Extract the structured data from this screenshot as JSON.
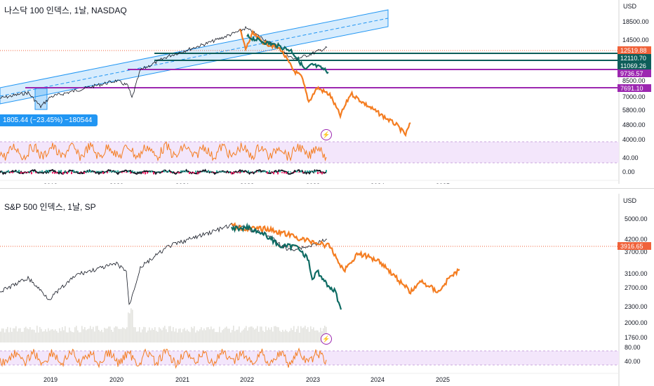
{
  "currency": "USD",
  "x_axis_years": [
    "2019",
    "2020",
    "2021",
    "2022",
    "2023",
    "2024",
    "2025"
  ],
  "top_chart": {
    "title": "나스닥 100 인덱스, 1날, NASDAQ",
    "price_ticks": [
      "18500.00",
      "14500.00",
      "8500.00",
      "7000.00",
      "5800.00",
      "4800.00",
      "4000.00"
    ],
    "price_tags": [
      {
        "text": "12519.88",
        "color": "#f0623a"
      },
      {
        "text": "12110.70",
        "color": "#0e5e5a"
      },
      {
        "text": "11069.26",
        "color": "#0e5e5a"
      },
      {
        "text": "9736.57",
        "color": "#9c27b0"
      },
      {
        "text": "7691.10",
        "color": "#9c27b0"
      }
    ],
    "measure_label": "1805.44 (−23.45%) −180544",
    "rsi_ticks": [
      "40.00"
    ],
    "macd_ticks": [
      "0.00"
    ],
    "colors": {
      "price": "#131722",
      "projection": "#f47d21",
      "actual": "#0e6b63",
      "channel": "#2196f3",
      "level": "#9c27b0",
      "rsi_band": "#f3e6fb"
    }
  },
  "bottom_chart": {
    "title": "S&P 500 인덱스, 1날, SP",
    "price_ticks": [
      "5000.00",
      "4200.00",
      "3700.00",
      "3100.00",
      "2700.00",
      "2300.00",
      "2000.00",
      "1760.00"
    ],
    "price_tags": [
      {
        "text": "3916.65",
        "color": "#f0623a"
      }
    ],
    "rsi_ticks": [
      "80.00",
      "40.00"
    ],
    "colors": {
      "price": "#131722",
      "projection": "#f47d21",
      "actual": "#0e6b63",
      "volume": "#e3e3de",
      "rsi_band": "#f3e6fb"
    }
  }
}
